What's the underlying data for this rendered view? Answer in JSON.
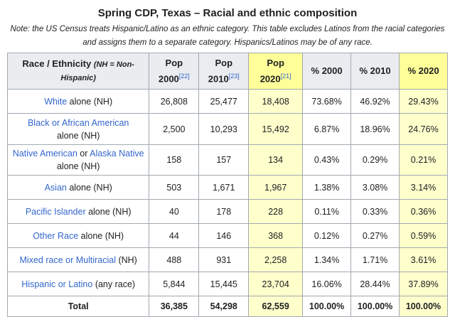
{
  "caption": "Spring CDP, Texas – Racial and ethnic composition",
  "note": "Note: the US Census treats Hispanic/Latino as an ethnic category. This table excludes Latinos from the racial categories and assigns them to a separate category. Hispanics/Latinos may be of any race.",
  "headers": {
    "race": "Race / Ethnicity",
    "race_note": "(NH = Non-Hispanic)",
    "pop2000": "Pop 2000",
    "pop2000_ref": "[22]",
    "pop2010": "Pop 2010",
    "pop2010_ref": "[23]",
    "pop2020": "Pop 2020",
    "pop2020_ref": "[21]",
    "pct2000": "% 2000",
    "pct2010": "% 2010",
    "pct2020": "% 2020"
  },
  "rows": [
    {
      "link1": "White",
      "link2": "",
      "text": " alone (NH)",
      "p2000": "26,808",
      "p2010": "25,477",
      "p2020": "18,408",
      "c2000": "73.68%",
      "c2010": "46.92%",
      "c2020": "29.43%"
    },
    {
      "link1": "Black or African American",
      "link2": "",
      "text": "alone (NH)",
      "p2000": "2,500",
      "p2010": "10,293",
      "p2020": "15,492",
      "c2000": "6.87%",
      "c2010": "18.96%",
      "c2020": "24.76%"
    },
    {
      "link1": "Native American",
      "mid": " or ",
      "link2": "Alaska Native",
      "text": " alone (NH)",
      "p2000": "158",
      "p2010": "157",
      "p2020": "134",
      "c2000": "0.43%",
      "c2010": "0.29%",
      "c2020": "0.21%"
    },
    {
      "link1": "Asian",
      "link2": "",
      "text": " alone (NH)",
      "p2000": "503",
      "p2010": "1,671",
      "p2020": "1,967",
      "c2000": "1.38%",
      "c2010": "3.08%",
      "c2020": "3.14%"
    },
    {
      "link1": "Pacific Islander",
      "link2": "",
      "text": " alone (NH)",
      "p2000": "40",
      "p2010": "178",
      "p2020": "228",
      "c2000": "0.11%",
      "c2010": "0.33%",
      "c2020": "0.36%"
    },
    {
      "link1": "Other Race",
      "link2": "",
      "text": " alone (NH)",
      "p2000": "44",
      "p2010": "146",
      "p2020": "368",
      "c2000": "0.12%",
      "c2010": "0.27%",
      "c2020": "0.59%"
    },
    {
      "link1": "Mixed race or Multiracial",
      "link2": "",
      "text": " (NH)",
      "p2000": "488",
      "p2010": "931",
      "p2020": "2,258",
      "c2000": "1.34%",
      "c2010": "1.71%",
      "c2020": "3.61%"
    },
    {
      "link1": "Hispanic or Latino",
      "link2": "",
      "text": " (any race)",
      "p2000": "5,844",
      "p2010": "15,445",
      "p2020": "23,704",
      "c2000": "16.06%",
      "c2010": "28.44%",
      "c2020": "37.89%"
    }
  ],
  "total": {
    "label": "Total",
    "p2000": "36,385",
    "p2010": "54,298",
    "p2020": "62,559",
    "c2000": "100.00%",
    "c2010": "100.00%",
    "c2020": "100.00%"
  },
  "colors": {
    "link": "#3366cc",
    "header_bg": "#eaecf0",
    "highlight_header": "#ffff99",
    "highlight_cell": "#ffffcc",
    "border": "#a2a9b1"
  }
}
